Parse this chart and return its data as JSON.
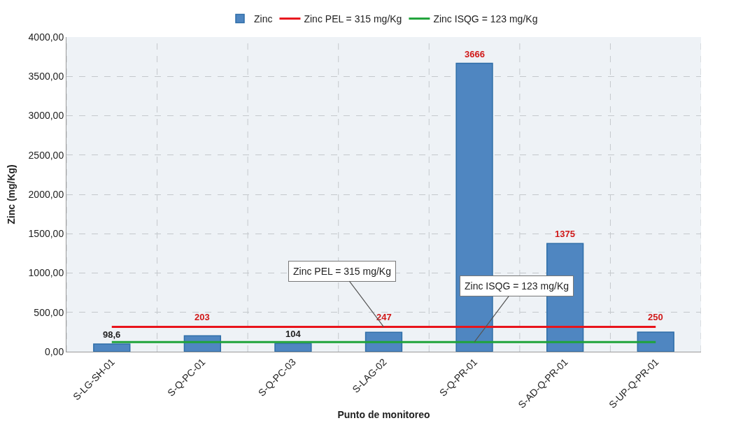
{
  "chart_data": {
    "type": "bar",
    "xlabel": "Punto de monitoreo",
    "ylabel": "Zinc (mg/Kg)",
    "categories": [
      "S-LG-SH-01",
      "S-Q-PC-01",
      "S-Q-PC-03",
      "S-LAG-02",
      "S-Q-PR-01",
      "S-AD-Q-PR-01",
      "S-UP-Q-PR-01"
    ],
    "series": [
      {
        "name": "Zinc",
        "color": "#4f86c1",
        "values": [
          98.6,
          203,
          104,
          247,
          3666,
          1375,
          250
        ],
        "value_labels": [
          "98,6",
          "203",
          "104",
          "247",
          "3666",
          "1375",
          "250"
        ]
      },
      {
        "name": "Zinc PEL = 315 mg/Kg",
        "type": "line",
        "color": "#e8141b",
        "values": [
          315,
          315,
          315,
          315,
          315,
          315,
          315
        ]
      },
      {
        "name": "Zinc ISQG = 123 mg/Kg",
        "type": "line",
        "color": "#1fa33a",
        "values": [
          123,
          123,
          123,
          123,
          123,
          123,
          123
        ]
      }
    ],
    "annotations": [
      {
        "text": "Zinc PEL = 315 mg/Kg",
        "x": "S-LAG-02",
        "y": 315
      },
      {
        "text": "Zinc ISQG = 123 mg/Kg",
        "x": "S-Q-PR-01",
        "y": 123
      }
    ],
    "ylim": [
      0,
      4000
    ],
    "yticks": [
      {
        "value": 0,
        "label": "0,00"
      },
      {
        "value": 500,
        "label": "500,00"
      },
      {
        "value": 1000,
        "label": "1000,00"
      },
      {
        "value": 1500,
        "label": "1500,00"
      },
      {
        "value": 2000,
        "label": "2000,00"
      },
      {
        "value": 2500,
        "label": "2500,00"
      },
      {
        "value": 3000,
        "label": "3000,00"
      },
      {
        "value": 3500,
        "label": "3500,00"
      },
      {
        "value": 4000,
        "label": "4000,00"
      }
    ],
    "grid": true,
    "legend": "top",
    "marker": "none"
  }
}
